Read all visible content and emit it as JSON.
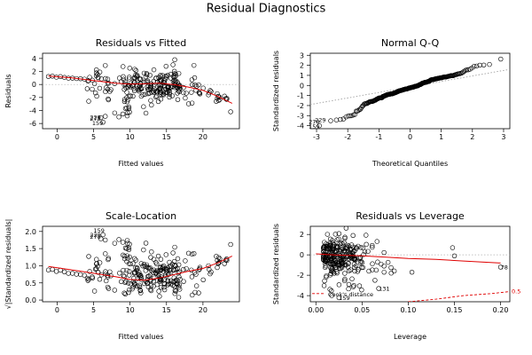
{
  "title": "Residual Diagnostics",
  "chart_data": [
    {
      "id": "rvf",
      "type": "scatter",
      "title": "Residuals vs Fitted",
      "xlabel": "Fitted values",
      "ylabel": "Residuals",
      "xlim": [
        -2,
        25
      ],
      "ylim": [
        -6.8,
        4.8
      ],
      "xticks": [
        0,
        5,
        10,
        15,
        20
      ],
      "yticks": [
        -6,
        -4,
        -2,
        0,
        2,
        4
      ],
      "hline": 0,
      "smooth": [
        [
          -1.2,
          1.3
        ],
        [
          2,
          1.0
        ],
        [
          5,
          0.6
        ],
        [
          8,
          0.2
        ],
        [
          10,
          0.05
        ],
        [
          12,
          0.1
        ],
        [
          14,
          0.2
        ],
        [
          16,
          0.0
        ],
        [
          18,
          -0.4
        ],
        [
          20,
          -0.9
        ],
        [
          22,
          -1.8
        ],
        [
          24,
          -2.9
        ]
      ],
      "labels": [
        {
          "x": 6.0,
          "y": -5.2,
          "text": "278"
        },
        {
          "x": 6.0,
          "y": -5.0,
          "text": "229"
        },
        {
          "x": 6.3,
          "y": -5.9,
          "text": "159"
        }
      ]
    },
    {
      "id": "qq",
      "type": "scatter",
      "title": "Normal Q-Q",
      "xlabel": "Theoretical Quantiles",
      "ylabel": "Standardized residuals",
      "xlim": [
        -3.2,
        3.2
      ],
      "ylim": [
        -4.3,
        3.2
      ],
      "xticks": [
        -3,
        -2,
        -1,
        0,
        1,
        2,
        3
      ],
      "yticks": [
        -4,
        -3,
        -2,
        -1,
        0,
        1,
        2,
        3
      ],
      "qqline": [
        [
          -3.2,
          -1.9
        ],
        [
          3.2,
          1.6
        ]
      ],
      "labels": [
        {
          "x": -2.9,
          "y": -3.6,
          "text": "278"
        },
        {
          "x": -2.7,
          "y": -3.4,
          "text": "229"
        },
        {
          "x": -2.9,
          "y": -4.1,
          "text": "159"
        }
      ]
    },
    {
      "id": "sl",
      "type": "scatter",
      "title": "Scale-Location",
      "xlabel": "Fitted values",
      "ylabel": "√|Standardized residuals|",
      "xlim": [
        -2,
        25
      ],
      "ylim": [
        -0.05,
        2.15
      ],
      "xticks": [
        0,
        5,
        10,
        15,
        20
      ],
      "yticks": [
        0.0,
        0.5,
        1.0,
        1.5,
        2.0
      ],
      "smooth": [
        [
          -1.2,
          0.98
        ],
        [
          2,
          0.88
        ],
        [
          5,
          0.78
        ],
        [
          8,
          0.68
        ],
        [
          10,
          0.6
        ],
        [
          12,
          0.58
        ],
        [
          14,
          0.64
        ],
        [
          16,
          0.74
        ],
        [
          18,
          0.84
        ],
        [
          20,
          0.92
        ],
        [
          22,
          1.08
        ],
        [
          24,
          1.28
        ]
      ],
      "labels": [
        {
          "x": 6.5,
          "y": 2.03,
          "text": "159"
        },
        {
          "x": 6.0,
          "y": 1.9,
          "text": "229"
        },
        {
          "x": 6.0,
          "y": 1.85,
          "text": "278"
        }
      ]
    },
    {
      "id": "rvl",
      "type": "scatter",
      "title": "Residuals vs Leverage",
      "xlabel": "Leverage",
      "ylabel": "Standardized residuals",
      "xlim": [
        -0.006,
        0.21
      ],
      "ylim": [
        -4.6,
        2.8
      ],
      "xticks": [
        0.0,
        0.05,
        0.1,
        0.15,
        0.2
      ],
      "yticks": [
        -4,
        -2,
        0,
        2
      ],
      "hline": 0,
      "smooth": [
        [
          0.0,
          0.1
        ],
        [
          0.02,
          0.0
        ],
        [
          0.05,
          -0.1
        ],
        [
          0.08,
          -0.25
        ],
        [
          0.1,
          -0.35
        ],
        [
          0.13,
          -0.45
        ],
        [
          0.16,
          -0.6
        ],
        [
          0.2,
          -0.8
        ]
      ],
      "cook_line": [
        [
          0.1,
          -4.6
        ],
        [
          0.13,
          -4.35
        ],
        [
          0.16,
          -4.0
        ],
        [
          0.19,
          -3.8
        ],
        [
          0.21,
          -3.6
        ]
      ],
      "cook_h": -3.8,
      "cook_label": "Cook's distance",
      "cook_value": "0.5",
      "labels": [
        {
          "x": 0.068,
          "y": -3.3,
          "text": "131"
        },
        {
          "x": 0.025,
          "y": -4.2,
          "text": "159"
        },
        {
          "x": 0.2,
          "y": -1.2,
          "text": "78"
        }
      ]
    }
  ]
}
